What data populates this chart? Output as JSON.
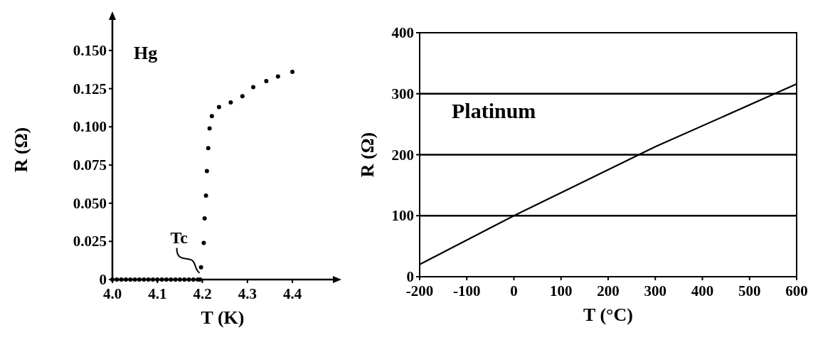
{
  "chart_data": [
    {
      "type": "scatter",
      "xlabel": "T (K)",
      "ylabel": "R (Ω)",
      "xlim": [
        4.0,
        4.49
      ],
      "ylim": [
        0,
        0.17
      ],
      "xticks": [
        {
          "value": 4.0,
          "label": "4.0"
        },
        4.1,
        4.2,
        4.3,
        4.4
      ],
      "yticks": [
        0,
        0.025,
        {
          "value": 0.05,
          "label": "0.050"
        },
        0.075,
        {
          "value": 0.1,
          "label": "0.100"
        },
        0.125,
        {
          "value": 0.15,
          "label": "0.150"
        }
      ],
      "marker": "circle",
      "grid": false,
      "annotations": [
        "Hg",
        {
          "text": "Tc",
          "x": 4.2,
          "y": 0.003
        }
      ],
      "series": [
        {
          "color": "#000000",
          "x": [
            4.0,
            4.01,
            4.02,
            4.03,
            4.04,
            4.05,
            4.06,
            4.07,
            4.08,
            4.09,
            4.1,
            4.11,
            4.12,
            4.13,
            4.14,
            4.15,
            4.16,
            4.17,
            4.18,
            4.19,
            4.195,
            4.197,
            4.203,
            4.205,
            4.208,
            4.21,
            4.213,
            4.216,
            4.221,
            4.237,
            4.263,
            4.289,
            4.313,
            4.342,
            4.368,
            4.4
          ],
          "values": [
            0,
            0,
            0,
            0,
            0,
            0,
            0,
            0,
            0,
            0,
            0,
            0,
            0,
            0,
            0,
            0,
            0,
            0,
            0,
            0,
            0,
            0.008,
            0.024,
            0.04,
            0.055,
            0.071,
            0.086,
            0.099,
            0.107,
            0.113,
            0.116,
            0.12,
            0.126,
            0.13,
            0.133,
            0.136
          ]
        }
      ]
    },
    {
      "type": "line",
      "xlabel": "T (°C)",
      "ylabel": "R (Ω)",
      "xlim": [
        -200,
        600
      ],
      "ylim": [
        0,
        400
      ],
      "xticks": [
        -200,
        -100,
        0,
        100,
        200,
        300,
        400,
        500,
        600
      ],
      "yticks": [
        0,
        100,
        200,
        300,
        400
      ],
      "grid": "y",
      "marker": "none",
      "annotations": [
        "Platinum"
      ],
      "series": [
        {
          "color": "#000000",
          "x": [
            -200,
            0,
            300,
            600
          ],
          "values": [
            20,
            100,
            213,
            316
          ]
        }
      ]
    }
  ]
}
